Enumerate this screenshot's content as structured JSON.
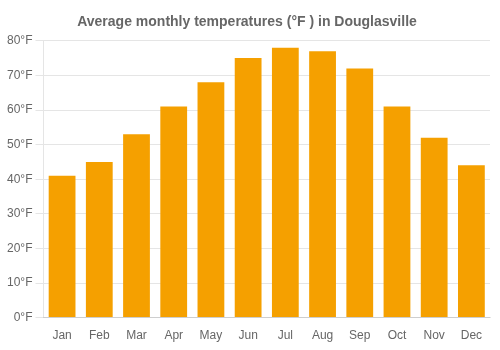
{
  "chart_data": {
    "type": "bar",
    "title": "Average monthly temperatures (°F ) in Douglasville",
    "categories": [
      "Jan",
      "Feb",
      "Mar",
      "Apr",
      "May",
      "Jun",
      "Jul",
      "Aug",
      "Sep",
      "Oct",
      "Nov",
      "Dec"
    ],
    "values": [
      41,
      45,
      53,
      61,
      68,
      75,
      78,
      77,
      72,
      61,
      52,
      44
    ],
    "color": "#F5A000",
    "ylim": [
      0,
      80
    ],
    "yticks": [
      {
        "value": 0,
        "label": "0°F"
      },
      {
        "value": 10,
        "label": "10°F"
      },
      {
        "value": 20,
        "label": "20°F"
      },
      {
        "value": 30,
        "label": "30°F"
      },
      {
        "value": 40,
        "label": "40°F"
      },
      {
        "value": 50,
        "label": "50°F"
      },
      {
        "value": 60,
        "label": "60°F"
      },
      {
        "value": 70,
        "label": "70°F"
      },
      {
        "value": 80,
        "label": "80°F"
      }
    ],
    "grid": true
  }
}
